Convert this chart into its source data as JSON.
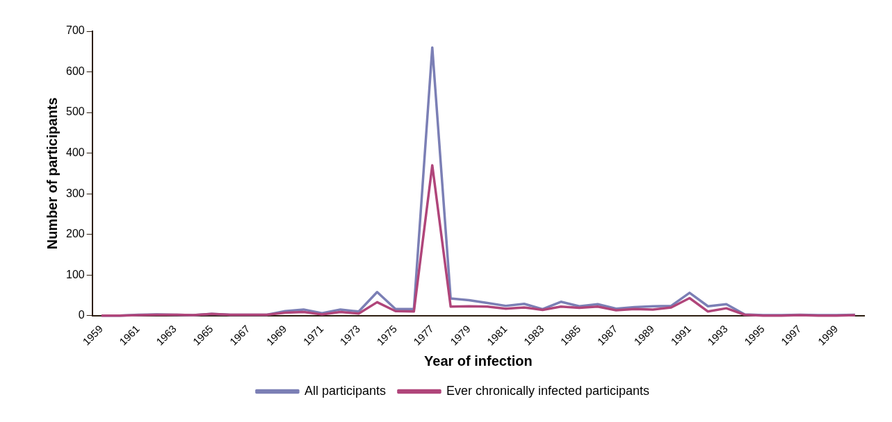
{
  "chart_data": {
    "type": "line",
    "xlabel": "Year of infection",
    "ylabel": "Number of participants",
    "categories": [
      "1959",
      null,
      "1961",
      null,
      "1963",
      null,
      "1965",
      null,
      "1967",
      null,
      "1969",
      null,
      "1971",
      null,
      "1973",
      null,
      "1975",
      null,
      "1977",
      null,
      "1979",
      null,
      "1981",
      null,
      "1983",
      null,
      "1985",
      null,
      "1987",
      null,
      "1989",
      null,
      "1991",
      null,
      "1993",
      null,
      "1995",
      null,
      "1997",
      null,
      "1999",
      null
    ],
    "series": [
      {
        "name": "All participants",
        "color": "#7b7fb5",
        "values": [
          0,
          0,
          2,
          3,
          2,
          1,
          4,
          2,
          2,
          2,
          11,
          15,
          6,
          15,
          10,
          58,
          16,
          16,
          660,
          42,
          38,
          31,
          24,
          29,
          16,
          34,
          23,
          28,
          17,
          21,
          23,
          24,
          56,
          23,
          28,
          3,
          1,
          1,
          2,
          1,
          1,
          2
        ]
      },
      {
        "name": "Ever chronically infected participants",
        "color": "#b0457a",
        "values": [
          0,
          0,
          1,
          2,
          2,
          1,
          4,
          2,
          2,
          2,
          7,
          9,
          3,
          9,
          5,
          33,
          11,
          10,
          370,
          22,
          23,
          22,
          17,
          20,
          14,
          22,
          19,
          22,
          13,
          16,
          15,
          20,
          43,
          10,
          18,
          2,
          0,
          0,
          1,
          0,
          0,
          1
        ]
      }
    ],
    "ylim": [
      0,
      700
    ],
    "yticks": [
      0,
      100,
      200,
      300,
      400,
      500,
      600,
      700
    ],
    "grid": false,
    "legend": "bottom",
    "marker": "none",
    "line_style": "solid"
  }
}
